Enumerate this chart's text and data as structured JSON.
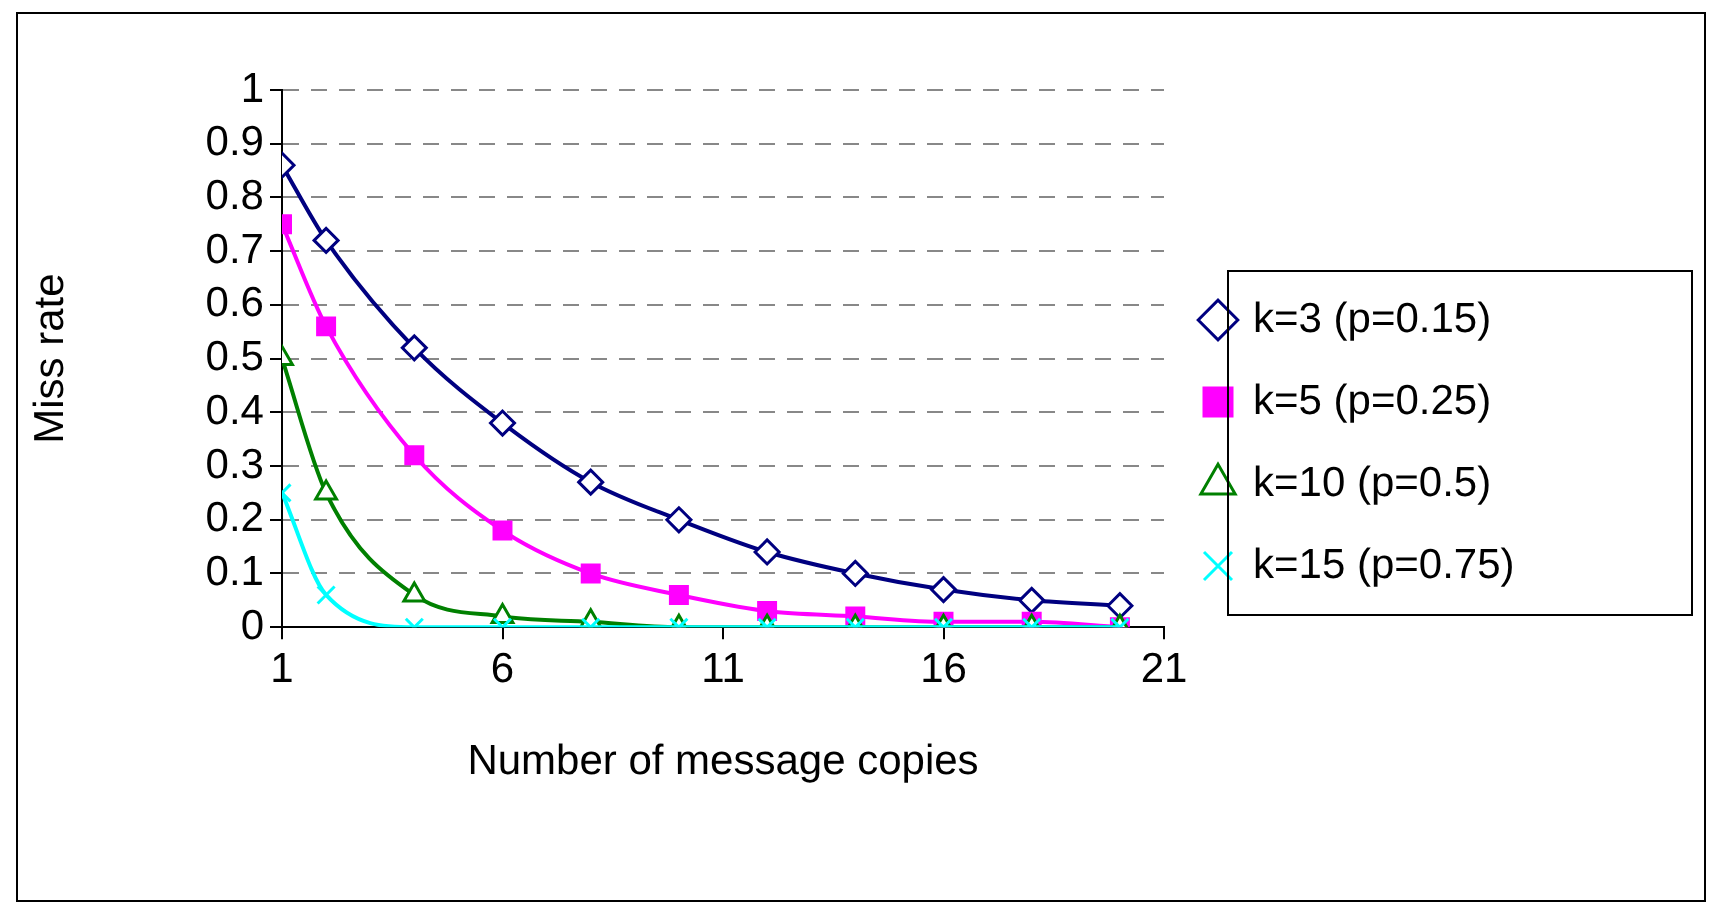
{
  "chart_data": {
    "type": "line",
    "xlabel": "Number of message copies",
    "ylabel": "Miss rate",
    "x": [
      1,
      2,
      4,
      6,
      8,
      10,
      12,
      14,
      16,
      18,
      20
    ],
    "series": [
      {
        "name": "k=3 (p=0.15)",
        "color": "#000080",
        "marker": "diamond",
        "values": [
          0.86,
          0.72,
          0.52,
          0.38,
          0.27,
          0.2,
          0.14,
          0.1,
          0.07,
          0.05,
          0.04
        ]
      },
      {
        "name": "k=5 (p=0.25)",
        "color": "#ff00ff",
        "marker": "square",
        "values": [
          0.75,
          0.56,
          0.32,
          0.18,
          0.1,
          0.06,
          0.03,
          0.02,
          0.01,
          0.01,
          0.0
        ]
      },
      {
        "name": "k=10 (p=0.5)",
        "color": "#008000",
        "marker": "triangle",
        "values": [
          0.5,
          0.25,
          0.06,
          0.02,
          0.01,
          0.0,
          0.0,
          0.0,
          0.0,
          0.0,
          0.0
        ]
      },
      {
        "name": "k=15 (p=0.75)",
        "color": "#00ffff",
        "marker": "cross",
        "values": [
          0.25,
          0.06,
          0.0,
          0.0,
          0.0,
          0.0,
          0.0,
          0.0,
          0.0,
          0.0,
          0.0
        ]
      }
    ],
    "xlim": [
      1,
      21
    ],
    "xticks": [
      1,
      6,
      11,
      16,
      21
    ],
    "ylim": [
      0,
      1
    ],
    "yticks": [
      0,
      0.1,
      0.2,
      0.3,
      0.4,
      0.5,
      0.6,
      0.7,
      0.8,
      0.9,
      1
    ],
    "grid": "y",
    "legend": "right"
  }
}
